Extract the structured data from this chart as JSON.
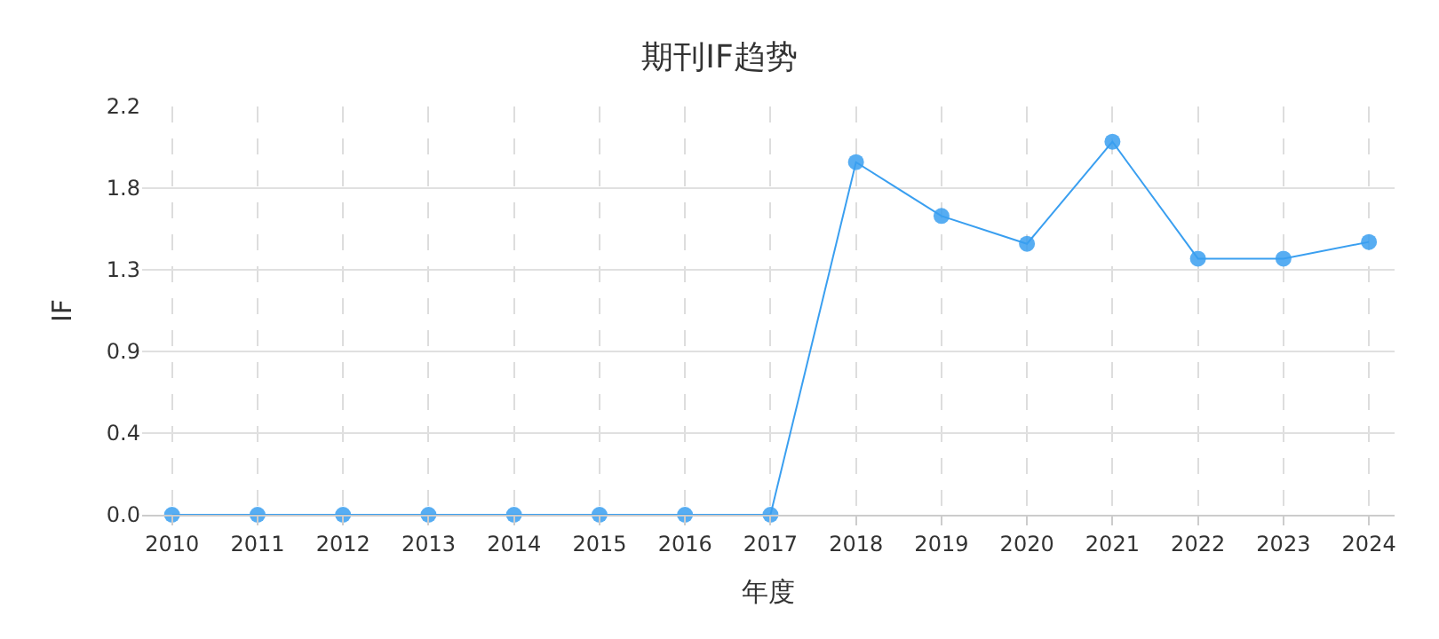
{
  "chart_data": {
    "type": "line",
    "title": "期刊IF趋势",
    "xlabel": "年度",
    "ylabel": "IF",
    "categories": [
      "2010",
      "2011",
      "2012",
      "2013",
      "2014",
      "2015",
      "2016",
      "2017",
      "2018",
      "2019",
      "2020",
      "2021",
      "2022",
      "2023",
      "2024"
    ],
    "series": [
      {
        "color": "#3a9ff0",
        "values": [
          0,
          0,
          0,
          0,
          0,
          0,
          0,
          0,
          1.9,
          1.61,
          1.46,
          2.01,
          1.38,
          1.38,
          1.47
        ]
      }
    ],
    "ylim": [
      0,
      2.2
    ],
    "yticks": [
      {
        "value": 0,
        "label": "0.0"
      },
      {
        "value": 0.44,
        "label": "0.4"
      },
      {
        "value": 0.88,
        "label": "0.9"
      },
      {
        "value": 1.32,
        "label": "1.3"
      },
      {
        "value": 1.76,
        "label": "1.8"
      },
      2.2
    ],
    "grid": true,
    "marker": "circle",
    "line_style": "solid"
  }
}
